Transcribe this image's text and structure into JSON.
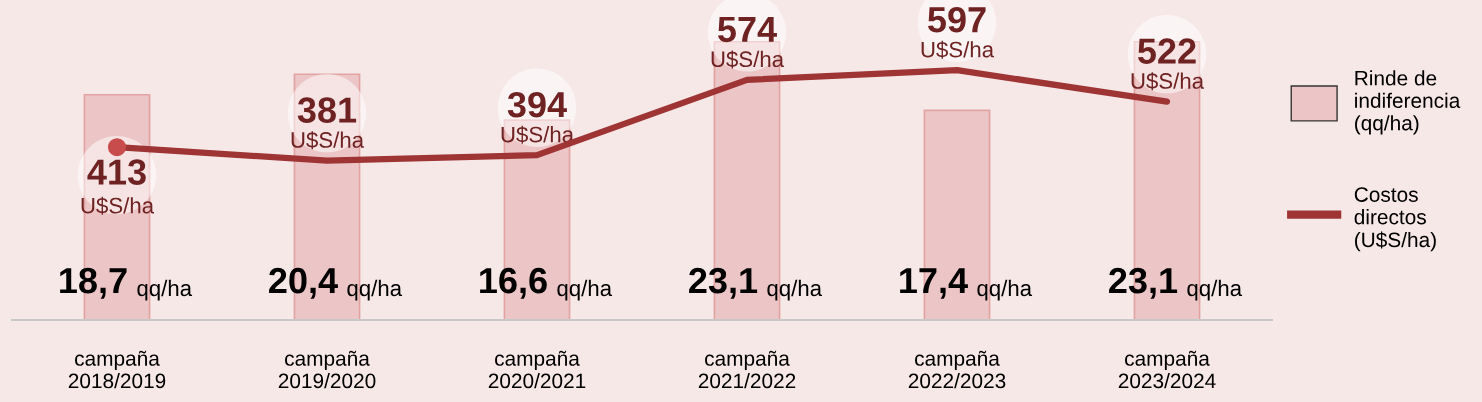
{
  "chart_data": {
    "type": "bar",
    "categories": [
      "campaña\n2018/2019",
      "campaña\n2019/2020",
      "campaña\n2020/2021",
      "campaña\n2021/2022",
      "campaña\n2022/2023",
      "campaña\n2023/2024"
    ],
    "ylim": [
      0,
      26.4
    ],
    "y2lim": [
      0,
      760
    ],
    "tick_labels": "x",
    "grid": false,
    "legend": "right",
    "series": [
      {
        "name": "Rinde de\nindiferencia\n(qq/ha)",
        "color": "#ecc6c6",
        "values": [
          18.7,
          20.4,
          16.6,
          23.1,
          17.4,
          23.1
        ],
        "value_labels": [
          "18,7 qq/ha",
          "20,4 qq/ha",
          "16,6 qq/ha",
          "23,1 qq/ha",
          "17,4 qq/ha",
          "23,1 qq/ha"
        ]
      },
      {
        "name": "Costos\ndirectos\n(U$S/ha)",
        "type": "line",
        "axis": "y2",
        "color": "#9e3434",
        "values": [
          413,
          381,
          394,
          574,
          597,
          522
        ],
        "value_labels": [
          "413\nU$S/ha",
          "381\nU$S/ha",
          "394\nU$S/ha",
          "574\nU$S/ha",
          "597\nU$S/ha",
          "522\nU$S/ha"
        ]
      }
    ]
  }
}
